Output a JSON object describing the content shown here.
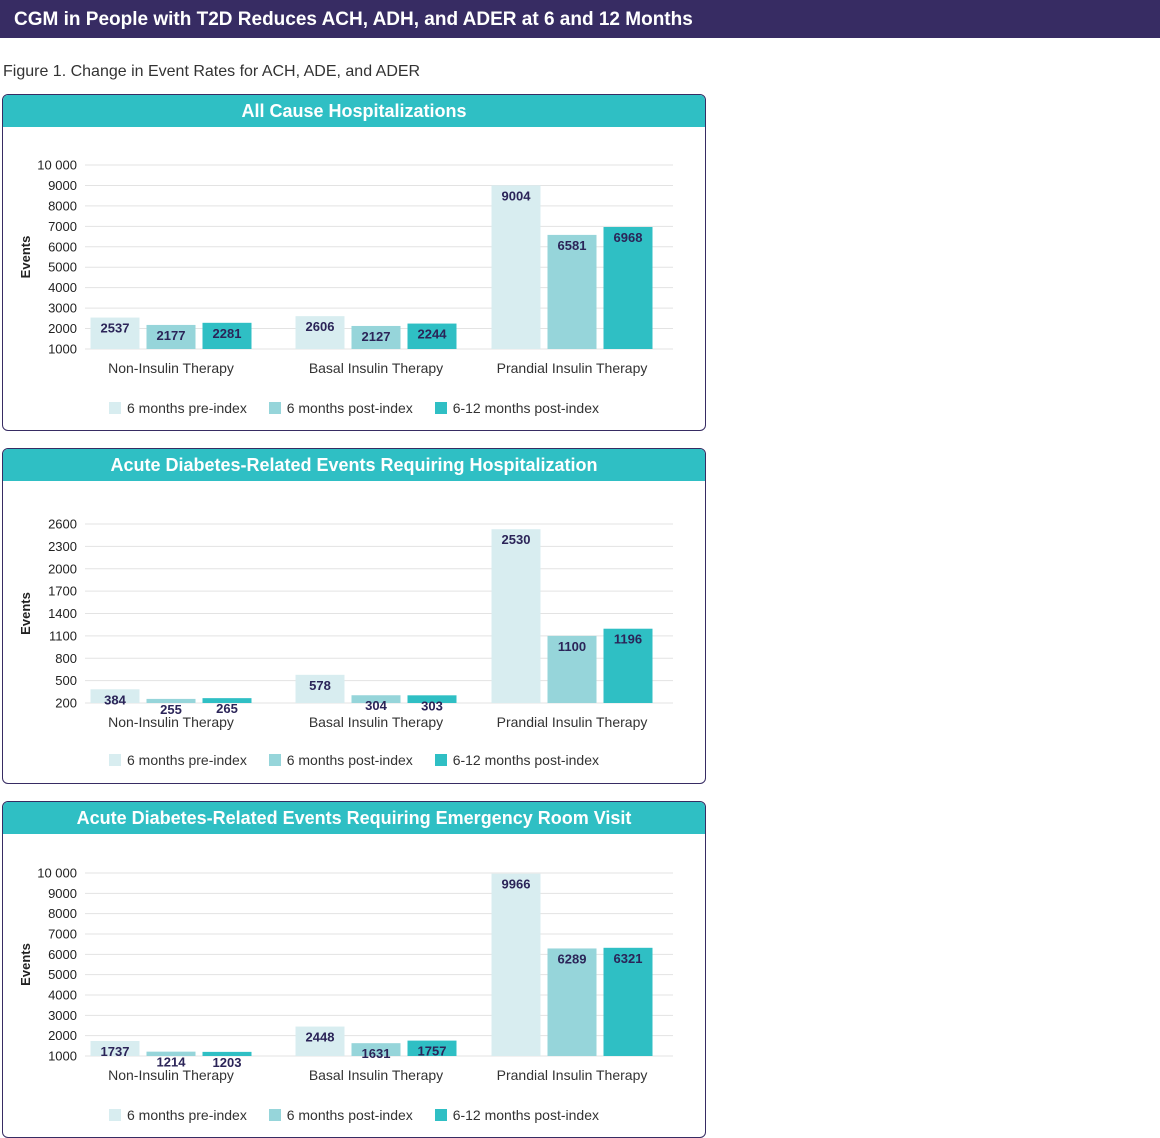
{
  "banner": {
    "title": "CGM in People with T2D Reduces ACH, ADH, and ADER at 6 and 12 Months"
  },
  "figure": {
    "caption": "Figure 1. Change in Event Rates for ACH, ADE, and ADER"
  },
  "colors": {
    "banner": "#372c63",
    "header": "#2fbfc4",
    "series": [
      "#d8edf0",
      "#96d5da",
      "#2fbfc4"
    ],
    "label": "#2b2458"
  },
  "chart_data": [
    {
      "type": "bar",
      "title": "All Cause Hospitalizations",
      "ylabel": "Events",
      "xlabel": "",
      "categories": [
        "Non-Insulin Therapy",
        "Basal Insulin Therapy",
        "Prandial Insulin Therapy"
      ],
      "series": [
        {
          "name": "6 months pre-index",
          "values": [
            2537,
            2606,
            9004
          ]
        },
        {
          "name": "6 months post-index",
          "values": [
            2177,
            2127,
            6581
          ]
        },
        {
          "name": "6-12 months post-index",
          "values": [
            2281,
            2244,
            6968
          ]
        }
      ],
      "ylim": [
        1000,
        10000
      ],
      "yticks": [
        1000,
        2000,
        3000,
        4000,
        5000,
        6000,
        7000,
        8000,
        9000,
        10000
      ],
      "ytick_labels": [
        "1000",
        "2000",
        "3000",
        "4000",
        "5000",
        "6000",
        "7000",
        "8000",
        "9000",
        "10 000"
      ],
      "grid": true,
      "legend": "bottom"
    },
    {
      "type": "bar",
      "title": "Acute Diabetes-Related Events Requiring Hospitalization",
      "ylabel": "Events",
      "xlabel": "",
      "categories": [
        "Non-Insulin Therapy",
        "Basal Insulin Therapy",
        "Prandial Insulin Therapy"
      ],
      "series": [
        {
          "name": "6 months pre-index",
          "values": [
            384,
            578,
            2530
          ]
        },
        {
          "name": "6 months post-index",
          "values": [
            255,
            304,
            1100
          ]
        },
        {
          "name": "6-12 months post-index",
          "values": [
            265,
            303,
            1196
          ]
        }
      ],
      "ylim": [
        200,
        2600
      ],
      "yticks": [
        200,
        500,
        800,
        1100,
        1400,
        1700,
        2000,
        2300,
        2600
      ],
      "ytick_labels": [
        "200",
        "500",
        "800",
        "1100",
        "1400",
        "1700",
        "2000",
        "2300",
        "2600"
      ],
      "grid": true,
      "legend": "bottom"
    },
    {
      "type": "bar",
      "title": "Acute Diabetes-Related Events Requiring Emergency Room Visit",
      "ylabel": "Events",
      "xlabel": "",
      "categories": [
        "Non-Insulin Therapy",
        "Basal Insulin Therapy",
        "Prandial Insulin Therapy"
      ],
      "series": [
        {
          "name": "6 months pre-index",
          "values": [
            1737,
            2448,
            9966
          ]
        },
        {
          "name": "6 months post-index",
          "values": [
            1214,
            1631,
            6289
          ]
        },
        {
          "name": "6-12 months post-index",
          "values": [
            1203,
            1757,
            6321
          ]
        }
      ],
      "ylim": [
        1000,
        10000
      ],
      "yticks": [
        1000,
        2000,
        3000,
        4000,
        5000,
        6000,
        7000,
        8000,
        9000,
        10000
      ],
      "ytick_labels": [
        "1000",
        "2000",
        "3000",
        "4000",
        "5000",
        "6000",
        "7000",
        "8000",
        "9000",
        "10 000"
      ],
      "grid": true,
      "legend": "bottom"
    }
  ]
}
